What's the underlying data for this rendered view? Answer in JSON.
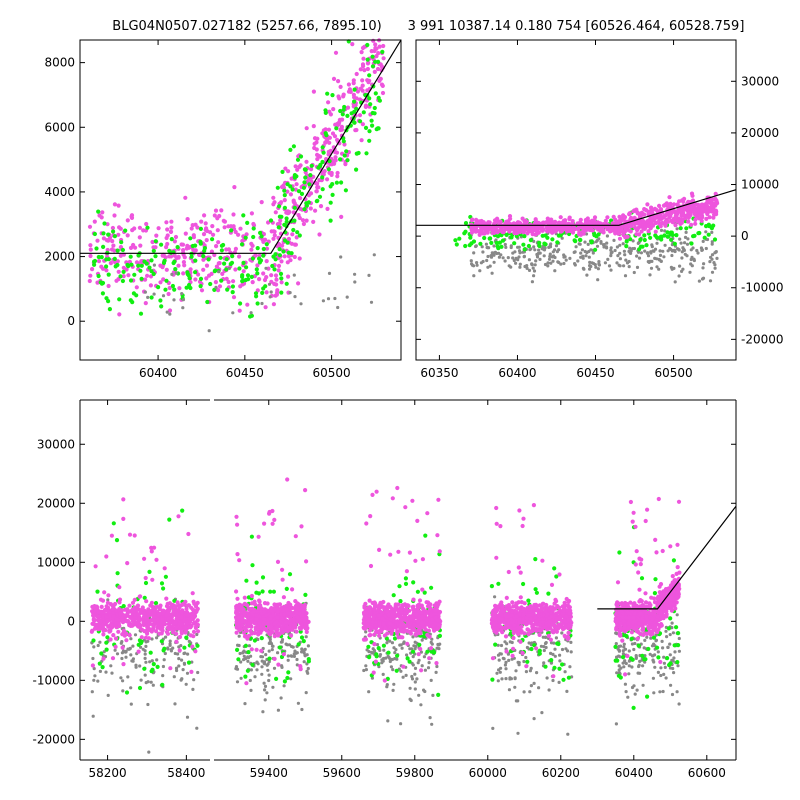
{
  "figure": {
    "title_left": "BLG04N0507.027182 (5257.66, 7895.10)",
    "title_right": "3 991 10387.14 0.180 754 [60526.464, 60528.759]"
  },
  "colors": {
    "magenta": "#ee55dd",
    "green": "#11ee11",
    "gray": "#888888"
  },
  "chart_data": [
    {
      "type": "scatter",
      "panel": "top-left",
      "xlim": [
        60355,
        60540
      ],
      "ylim": [
        -1200,
        8700
      ],
      "x_ticks": [
        "60400",
        "60450",
        "60500"
      ],
      "y_ticks": [
        "0",
        "2000",
        "4000",
        "6000",
        "8000"
      ],
      "model_line": [
        [
          60355,
          2100
        ],
        [
          60465,
          2100
        ],
        [
          60540,
          8700
        ]
      ],
      "series": [
        {
          "color": "magenta",
          "clusters": [
            {
              "x": [
                60360,
                60465
              ],
              "base": 2100,
              "spread": 1300,
              "n": 330
            },
            {
              "x": [
                60465,
                60530
              ],
              "base": 2100,
              "slope": 100,
              "spread": 1700,
              "n": 380
            }
          ]
        },
        {
          "color": "green",
          "clusters": [
            {
              "x": [
                60360,
                60465
              ],
              "base": 1700,
              "spread": 1300,
              "n": 170
            },
            {
              "x": [
                60465,
                60530
              ],
              "base": 2300,
              "slope": 80,
              "spread": 1800,
              "n": 150
            }
          ]
        },
        {
          "color": "gray",
          "clusters": [
            {
              "x": [
                60390,
                60525
              ],
              "base": 800,
              "spread": 1000,
              "n": 40
            }
          ]
        }
      ]
    },
    {
      "type": "scatter",
      "panel": "top-right",
      "xlim": [
        60335,
        60540
      ],
      "ylim": [
        -24000,
        38000
      ],
      "x_ticks": [
        "60350",
        "60400",
        "60450",
        "60500"
      ],
      "y_ticks": [
        "-20000",
        "-10000",
        "0",
        "10000",
        "20000",
        "30000"
      ],
      "model_line": [
        [
          60335,
          2100
        ],
        [
          60465,
          2100
        ],
        [
          60540,
          9000
        ]
      ],
      "series": [
        {
          "color": "gray",
          "clusters": [
            {
              "x": [
                60370,
                60528
              ],
              "base": -3500,
              "spread": 4000,
              "n": 380
            }
          ]
        },
        {
          "color": "green",
          "clusters": [
            {
              "x": [
                60360,
                60528
              ],
              "base": 500,
              "spread": 2600,
              "n": 180
            }
          ]
        },
        {
          "color": "magenta",
          "clusters": [
            {
              "x": [
                60370,
                60465
              ],
              "base": 1800,
              "spread": 1300,
              "n": 480
            },
            {
              "x": [
                60465,
                60528
              ],
              "base": 2000,
              "slope": 65,
              "spread": 2200,
              "n": 380
            }
          ]
        }
      ]
    },
    {
      "type": "scatter",
      "panel": "bottom",
      "broken_x_axis": true,
      "segments": [
        {
          "xlim": [
            58130,
            58460
          ],
          "x_ticks": [
            "58200",
            "58400"
          ]
        },
        {
          "xlim": [
            59250,
            60680
          ],
          "x_ticks": [
            "59400",
            "59600",
            "59800",
            "60000",
            "60200",
            "60400",
            "60600"
          ]
        }
      ],
      "ylim": [
        -23500,
        37500
      ],
      "y_ticks": [
        "-20000",
        "-10000",
        "0",
        "10000",
        "20000",
        "30000"
      ],
      "model_line": [
        [
          60300,
          2100
        ],
        [
          60465,
          2100
        ],
        [
          60680,
          19500
        ]
      ],
      "seasons": [
        {
          "x": [
            58160,
            58430
          ]
        },
        {
          "x": [
            59310,
            59510
          ]
        },
        {
          "x": [
            59660,
            59870
          ]
        },
        {
          "x": [
            60010,
            60230
          ]
        },
        {
          "x": [
            60350,
            60525
          ]
        }
      ]
    }
  ]
}
